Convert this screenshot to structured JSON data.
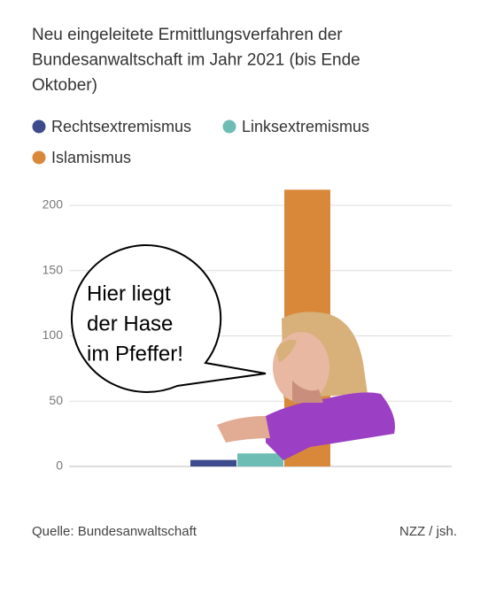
{
  "chart_data": {
    "type": "bar",
    "title": [
      "Neu eingeleitete Ermittlungsverfahren der",
      "Bundesanwaltschaft im Jahr 2021 (bis Ende",
      "Oktober)"
    ],
    "categories": [
      null
    ],
    "series": [
      {
        "name": "Rechtsextremismus",
        "color": "#3d4a8c",
        "values": [
          5
        ]
      },
      {
        "name": "Linksextremismus",
        "color": "#6dbdb4",
        "values": [
          10
        ]
      },
      {
        "name": "Islamismus",
        "color": "#d9883a",
        "values": [
          212
        ]
      }
    ],
    "ylim": [
      0,
      200
    ],
    "yticks": [
      0,
      50,
      100,
      150,
      200
    ],
    "grid": true,
    "annotation": [
      "Hier liegt",
      "der Hase",
      "im Pfeffer!"
    ],
    "source": "Quelle: Bundesanwaltschaft",
    "credit": "NZZ / jsh."
  }
}
